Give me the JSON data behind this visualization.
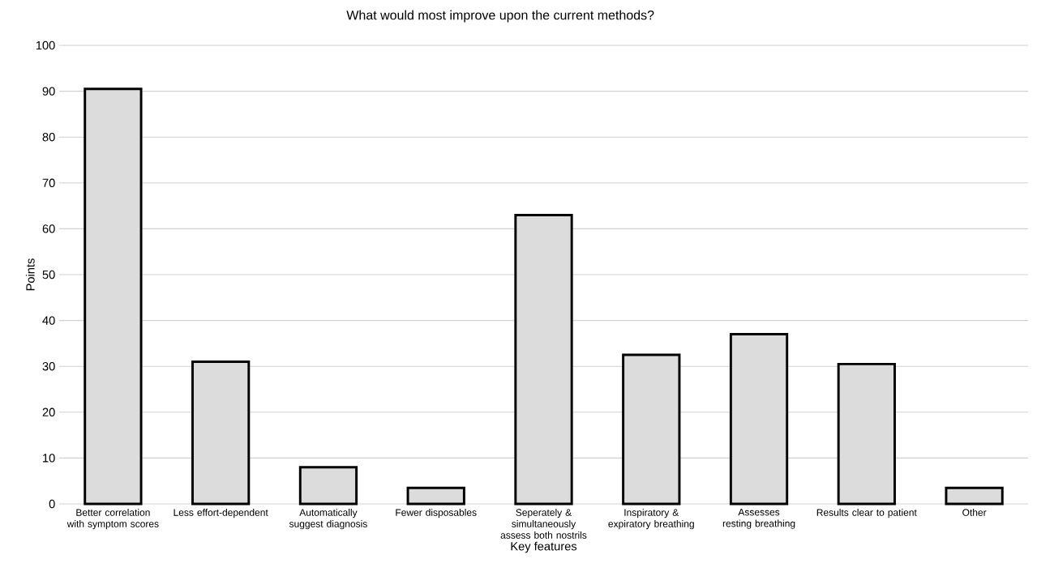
{
  "chart_data": {
    "type": "bar",
    "title": "What would most improve upon the current methods?",
    "xlabel": "Key features",
    "ylabel": "Points",
    "categories": [
      "Better correlation with symptom scores",
      "Less effort-dependent",
      "Automatically suggest diagnosis",
      "Fewer disposables",
      "Seperately & simultaneously assess both nostrils",
      "Inspiratory & expiratory breathing",
      "Assesses resting breathing",
      "Results clear to patient",
      "Other"
    ],
    "values": [
      90.5,
      31,
      8,
      3.5,
      63,
      32.5,
      37,
      30.5,
      3.5
    ],
    "color": "#dcdcdc",
    "ylim": [
      0,
      100
    ],
    "yticks": [
      0,
      10,
      20,
      30,
      40,
      50,
      60,
      70,
      80,
      90,
      100
    ],
    "grid": "y"
  }
}
